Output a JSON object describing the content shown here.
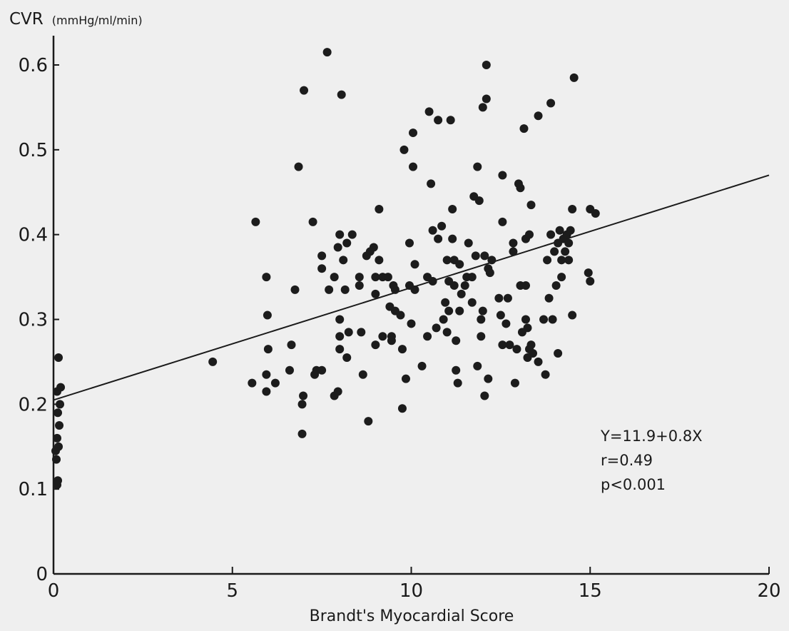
{
  "chart_data": {
    "type": "scatter",
    "title": "",
    "xlabel": "Brandt's Myocardial Score",
    "ylabel": "CVR",
    "ylabel_unit": "(mmHg/ml/min)",
    "xlim": [
      0,
      20
    ],
    "ylim": [
      0,
      0.65
    ],
    "x_ticks": [
      0,
      5,
      10,
      15,
      20
    ],
    "x_tick_labels": [
      "0",
      "5",
      "10",
      "15",
      "20"
    ],
    "y_ticks": [
      0,
      0.1,
      0.2,
      0.3,
      0.4,
      0.5,
      0.6
    ],
    "y_tick_labels": [
      "0",
      "0.1",
      "0.2",
      "0.3",
      "0.4",
      "0.5",
      "0.6"
    ],
    "grid": false,
    "regression_line": {
      "x": [
        0,
        20
      ],
      "y": [
        0.205,
        0.47
      ]
    },
    "annotations": [
      "Y=11.9+0.8X",
      "r=0.49",
      "p<0.001"
    ],
    "annotation_position": "bottom-right",
    "point_color": "#1c1c1c",
    "series": [
      {
        "points": [
          [
            0.1,
            0.105
          ],
          [
            0.12,
            0.11
          ],
          [
            0.08,
            0.135
          ],
          [
            0.14,
            0.15
          ],
          [
            0.1,
            0.16
          ],
          [
            0.16,
            0.175
          ],
          [
            0.12,
            0.19
          ],
          [
            0.18,
            0.2
          ],
          [
            0.1,
            0.215
          ],
          [
            0.2,
            0.22
          ],
          [
            0.14,
            0.255
          ],
          [
            0.06,
            0.145
          ],
          [
            4.45,
            0.25
          ],
          [
            5.55,
            0.225
          ],
          [
            5.65,
            0.415
          ],
          [
            5.95,
            0.35
          ],
          [
            5.98,
            0.305
          ],
          [
            6.0,
            0.265
          ],
          [
            5.95,
            0.235
          ],
          [
            5.95,
            0.215
          ],
          [
            6.2,
            0.225
          ],
          [
            6.6,
            0.24
          ],
          [
            6.65,
            0.27
          ],
          [
            6.75,
            0.335
          ],
          [
            6.85,
            0.48
          ],
          [
            6.95,
            0.165
          ],
          [
            6.95,
            0.2
          ],
          [
            6.98,
            0.21
          ],
          [
            7.0,
            0.57
          ],
          [
            7.3,
            0.235
          ],
          [
            7.35,
            0.24
          ],
          [
            7.25,
            0.415
          ],
          [
            7.5,
            0.24
          ],
          [
            7.5,
            0.36
          ],
          [
            7.5,
            0.375
          ],
          [
            7.7,
            0.335
          ],
          [
            7.65,
            0.615
          ],
          [
            7.85,
            0.21
          ],
          [
            7.95,
            0.385
          ],
          [
            7.85,
            0.35
          ],
          [
            8.0,
            0.4
          ],
          [
            8.0,
            0.3
          ],
          [
            8.0,
            0.28
          ],
          [
            8.0,
            0.265
          ],
          [
            7.95,
            0.215
          ],
          [
            8.05,
            0.565
          ],
          [
            8.1,
            0.37
          ],
          [
            8.15,
            0.335
          ],
          [
            8.2,
            0.255
          ],
          [
            8.25,
            0.285
          ],
          [
            8.2,
            0.39
          ],
          [
            8.35,
            0.4
          ],
          [
            8.55,
            0.35
          ],
          [
            8.55,
            0.34
          ],
          [
            8.6,
            0.285
          ],
          [
            8.65,
            0.235
          ],
          [
            8.75,
            0.375
          ],
          [
            8.85,
            0.38
          ],
          [
            8.8,
            0.18
          ],
          [
            8.95,
            0.385
          ],
          [
            9.0,
            0.35
          ],
          [
            9.0,
            0.33
          ],
          [
            9.0,
            0.27
          ],
          [
            9.1,
            0.37
          ],
          [
            9.1,
            0.43
          ],
          [
            9.2,
            0.35
          ],
          [
            9.2,
            0.28
          ],
          [
            9.35,
            0.35
          ],
          [
            9.4,
            0.315
          ],
          [
            9.45,
            0.28
          ],
          [
            9.45,
            0.275
          ],
          [
            9.5,
            0.34
          ],
          [
            9.55,
            0.335
          ],
          [
            9.55,
            0.31
          ],
          [
            9.7,
            0.305
          ],
          [
            9.75,
            0.265
          ],
          [
            9.75,
            0.195
          ],
          [
            9.8,
            0.5
          ],
          [
            9.85,
            0.23
          ],
          [
            9.95,
            0.34
          ],
          [
            9.95,
            0.39
          ],
          [
            10.0,
            0.295
          ],
          [
            10.05,
            0.52
          ],
          [
            10.05,
            0.48
          ],
          [
            10.1,
            0.365
          ],
          [
            10.1,
            0.335
          ],
          [
            10.3,
            0.245
          ],
          [
            10.45,
            0.35
          ],
          [
            10.45,
            0.28
          ],
          [
            10.5,
            0.545
          ],
          [
            10.55,
            0.46
          ],
          [
            10.6,
            0.405
          ],
          [
            10.6,
            0.345
          ],
          [
            10.7,
            0.29
          ],
          [
            10.75,
            0.395
          ],
          [
            10.75,
            0.535
          ],
          [
            10.85,
            0.41
          ],
          [
            10.9,
            0.3
          ],
          [
            10.95,
            0.32
          ],
          [
            11.0,
            0.37
          ],
          [
            11.0,
            0.285
          ],
          [
            11.05,
            0.31
          ],
          [
            11.05,
            0.345
          ],
          [
            11.1,
            0.535
          ],
          [
            11.15,
            0.43
          ],
          [
            11.15,
            0.395
          ],
          [
            11.2,
            0.37
          ],
          [
            11.2,
            0.34
          ],
          [
            11.25,
            0.275
          ],
          [
            11.25,
            0.24
          ],
          [
            11.3,
            0.225
          ],
          [
            11.35,
            0.365
          ],
          [
            11.35,
            0.31
          ],
          [
            11.4,
            0.33
          ],
          [
            11.5,
            0.34
          ],
          [
            11.55,
            0.35
          ],
          [
            11.6,
            0.39
          ],
          [
            11.7,
            0.35
          ],
          [
            11.7,
            0.32
          ],
          [
            11.75,
            0.445
          ],
          [
            11.85,
            0.48
          ],
          [
            11.9,
            0.44
          ],
          [
            11.8,
            0.375
          ],
          [
            11.85,
            0.245
          ],
          [
            11.95,
            0.28
          ],
          [
            11.95,
            0.3
          ],
          [
            12.0,
            0.55
          ],
          [
            12.0,
            0.31
          ],
          [
            12.05,
            0.375
          ],
          [
            12.1,
            0.56
          ],
          [
            12.1,
            0.6
          ],
          [
            12.15,
            0.36
          ],
          [
            12.2,
            0.355
          ],
          [
            12.25,
            0.37
          ],
          [
            12.05,
            0.21
          ],
          [
            12.15,
            0.23
          ],
          [
            12.45,
            0.325
          ],
          [
            12.5,
            0.305
          ],
          [
            12.55,
            0.47
          ],
          [
            12.55,
            0.415
          ],
          [
            12.55,
            0.27
          ],
          [
            12.65,
            0.295
          ],
          [
            12.7,
            0.325
          ],
          [
            12.75,
            0.27
          ],
          [
            12.85,
            0.39
          ],
          [
            12.85,
            0.38
          ],
          [
            12.9,
            0.225
          ],
          [
            12.95,
            0.265
          ],
          [
            13.0,
            0.46
          ],
          [
            13.05,
            0.455
          ],
          [
            13.05,
            0.34
          ],
          [
            13.1,
            0.285
          ],
          [
            13.15,
            0.525
          ],
          [
            13.2,
            0.395
          ],
          [
            13.2,
            0.34
          ],
          [
            13.2,
            0.3
          ],
          [
            13.25,
            0.29
          ],
          [
            13.25,
            0.255
          ],
          [
            13.3,
            0.4
          ],
          [
            13.3,
            0.265
          ],
          [
            13.35,
            0.435
          ],
          [
            13.35,
            0.27
          ],
          [
            13.4,
            0.26
          ],
          [
            13.55,
            0.54
          ],
          [
            13.55,
            0.25
          ],
          [
            13.7,
            0.3
          ],
          [
            13.75,
            0.235
          ],
          [
            13.8,
            0.37
          ],
          [
            13.85,
            0.325
          ],
          [
            13.9,
            0.555
          ],
          [
            13.9,
            0.4
          ],
          [
            13.95,
            0.3
          ],
          [
            14.0,
            0.38
          ],
          [
            14.05,
            0.34
          ],
          [
            14.1,
            0.39
          ],
          [
            14.1,
            0.26
          ],
          [
            14.15,
            0.405
          ],
          [
            14.2,
            0.37
          ],
          [
            14.2,
            0.35
          ],
          [
            14.25,
            0.395
          ],
          [
            14.3,
            0.38
          ],
          [
            14.35,
            0.4
          ],
          [
            14.4,
            0.39
          ],
          [
            14.4,
            0.37
          ],
          [
            14.45,
            0.405
          ],
          [
            14.5,
            0.43
          ],
          [
            14.5,
            0.305
          ],
          [
            14.55,
            0.585
          ],
          [
            14.95,
            0.355
          ],
          [
            15.0,
            0.345
          ],
          [
            15.0,
            0.43
          ],
          [
            15.15,
            0.425
          ]
        ]
      }
    ]
  }
}
